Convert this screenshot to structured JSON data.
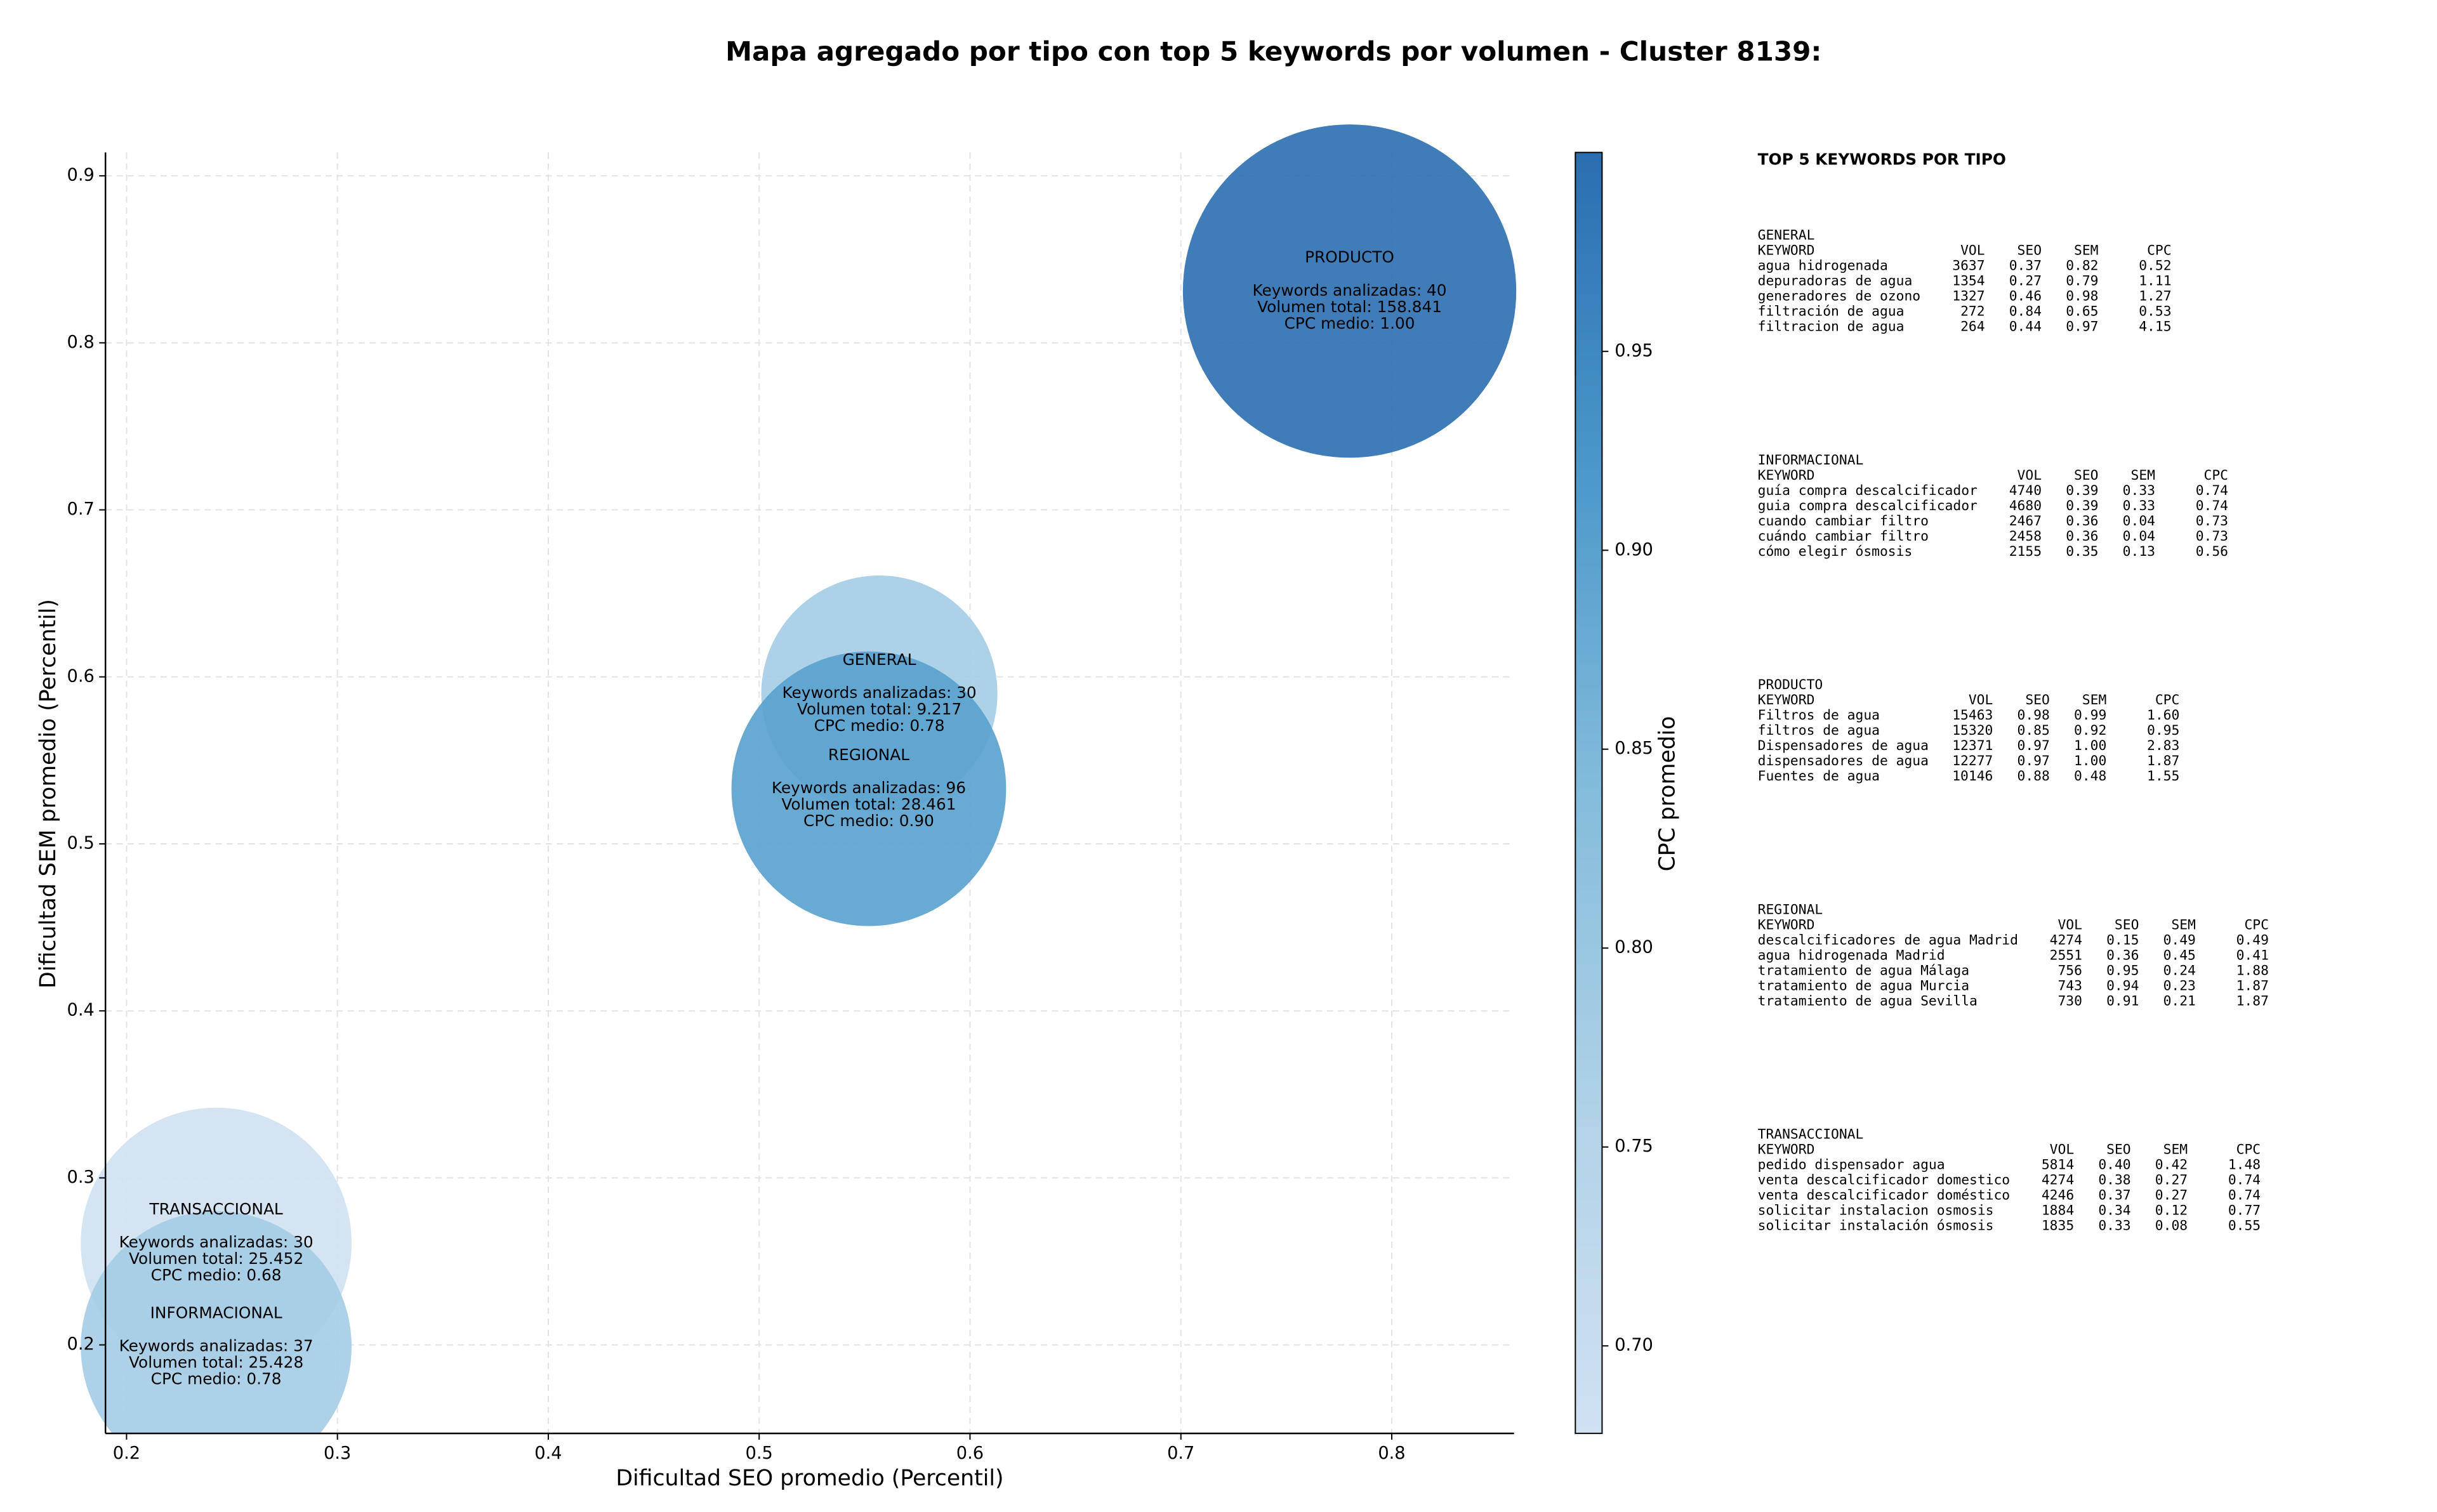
{
  "chart_data": {
    "type": "bubble",
    "title": "Mapa agregado por tipo con top 5 keywords por volumen - Cluster 8139:",
    "xlabel": "Dificultad SEO promedio (Percentil)",
    "ylabel": "Dificultad SEM promedio (Percentil)",
    "xlim": [
      0.19,
      0.858
    ],
    "ylim": [
      0.147,
      0.914
    ],
    "xticks": [
      0.2,
      0.3,
      0.4,
      0.5,
      0.6,
      0.7,
      0.8
    ],
    "yticks": [
      0.2,
      0.3,
      0.4,
      0.5,
      0.6,
      0.7,
      0.8,
      0.9
    ],
    "grid": true,
    "points": [
      {
        "name": "PRODUCTO",
        "x": 0.78,
        "y": 0.831,
        "size": 158841,
        "cpc": 1.0,
        "lines": [
          "Keywords analizadas: 40",
          "Volumen total: 158.841",
          "CPC medio: 1.00"
        ]
      },
      {
        "name": "GENERAL",
        "x": 0.557,
        "y": 0.59,
        "size": 9217,
        "cpc": 0.78,
        "lines": [
          "Keywords analizadas: 30",
          "Volumen total: 9.217",
          "CPC medio: 0.78"
        ]
      },
      {
        "name": "REGIONAL",
        "x": 0.552,
        "y": 0.533,
        "size": 28461,
        "cpc": 0.9,
        "lines": [
          "Keywords analizadas: 96",
          "Volumen total: 28.461",
          "CPC medio: 0.90"
        ]
      },
      {
        "name": "TRANSACCIONAL",
        "x": 0.2425,
        "y": 0.261,
        "size": 25452,
        "cpc": 0.68,
        "lines": [
          "Keywords analizadas: 30",
          "Volumen total: 25.452",
          "CPC medio: 0.68"
        ]
      },
      {
        "name": "INFORMACIONAL",
        "x": 0.2425,
        "y": 0.199,
        "size": 25428,
        "cpc": 0.78,
        "lines": [
          "Keywords analizadas: 37",
          "Volumen total: 25.428",
          "CPC medio: 0.78"
        ]
      }
    ],
    "colorbar": {
      "label": "CPC promedio",
      "lim": [
        0.678,
        1.0
      ],
      "ticks": [
        {
          "value": 0.7,
          "label": "0.70"
        },
        0.75,
        {
          "value": 0.8,
          "label": "0.80"
        },
        0.85,
        {
          "value": 0.9,
          "label": "0.90"
        },
        0.95
      ],
      "colors": [
        "#d0e1f2",
        "#b0d2e7",
        "#84bcdb",
        "#4b98ca",
        "#2a6eb0"
      ]
    }
  },
  "side_panel": {
    "title": "TOP 5 KEYWORDS POR TIPO",
    "groups": [
      {
        "name": "GENERAL",
        "header": [
          "KEYWORD",
          "VOL",
          "SEO",
          "SEM",
          "CPC"
        ],
        "rows": [
          [
            "agua hidrogenada",
            "3637",
            "0.37",
            "0.82",
            "0.52"
          ],
          [
            "depuradoras de agua",
            "1354",
            "0.27",
            "0.79",
            "1.11"
          ],
          [
            "generadores de ozono",
            "1327",
            "0.46",
            "0.98",
            "1.27"
          ],
          [
            "filtración de agua",
            "272",
            "0.84",
            "0.65",
            "0.53"
          ],
          [
            "filtracion de agua",
            "264",
            "0.44",
            "0.97",
            "4.15"
          ]
        ]
      },
      {
        "name": "INFORMACIONAL",
        "header": [
          "KEYWORD",
          "VOL",
          "SEO",
          "SEM",
          "CPC"
        ],
        "rows": [
          [
            "guía compra descalcificador",
            "4740",
            "0.39",
            "0.33",
            "0.74"
          ],
          [
            "guia compra descalcificador",
            "4680",
            "0.39",
            "0.33",
            "0.74"
          ],
          [
            "cuando cambiar filtro",
            "2467",
            "0.36",
            "0.04",
            "0.73"
          ],
          [
            "cuándo cambiar filtro",
            "2458",
            "0.36",
            "0.04",
            "0.73"
          ],
          [
            "cómo elegir ósmosis",
            "2155",
            "0.35",
            "0.13",
            "0.56"
          ]
        ]
      },
      {
        "name": "PRODUCTO",
        "header": [
          "KEYWORD",
          "VOL",
          "SEO",
          "SEM",
          "CPC"
        ],
        "rows": [
          [
            "Filtros de agua",
            "15463",
            "0.98",
            "0.99",
            "1.60"
          ],
          [
            "filtros de agua",
            "15320",
            "0.85",
            "0.92",
            "0.95"
          ],
          [
            "Dispensadores de agua",
            "12371",
            "0.97",
            "1.00",
            "2.83"
          ],
          [
            "dispensadores de agua",
            "12277",
            "0.97",
            "1.00",
            "1.87"
          ],
          [
            "Fuentes de agua",
            "10146",
            "0.88",
            "0.48",
            "1.55"
          ]
        ]
      },
      {
        "name": "REGIONAL",
        "header": [
          "KEYWORD",
          "VOL",
          "SEO",
          "SEM",
          "CPC"
        ],
        "rows": [
          [
            "descalcificadores de agua Madrid",
            "4274",
            "0.15",
            "0.49",
            "0.49"
          ],
          [
            "agua hidrogenada Madrid",
            "2551",
            "0.36",
            "0.45",
            "0.41"
          ],
          [
            "tratamiento de agua Málaga",
            "756",
            "0.95",
            "0.24",
            "1.88"
          ],
          [
            "tratamiento de agua Murcia",
            "743",
            "0.94",
            "0.23",
            "1.87"
          ],
          [
            "tratamiento de agua Sevilla",
            "730",
            "0.91",
            "0.21",
            "1.87"
          ]
        ]
      },
      {
        "name": "TRANSACCIONAL",
        "header": [
          "KEYWORD",
          "VOL",
          "SEO",
          "SEM",
          "CPC"
        ],
        "rows": [
          [
            "pedido dispensador agua",
            "5814",
            "0.40",
            "0.42",
            "1.48"
          ],
          [
            "venta descalcificador domestico",
            "4274",
            "0.38",
            "0.27",
            "0.74"
          ],
          [
            "venta descalcificador doméstico",
            "4246",
            "0.37",
            "0.27",
            "0.74"
          ],
          [
            "solicitar instalacion osmosis",
            "1884",
            "0.34",
            "0.12",
            "0.77"
          ],
          [
            "solicitar instalación ósmosis",
            "1835",
            "0.33",
            "0.08",
            "0.55"
          ]
        ]
      }
    ]
  }
}
